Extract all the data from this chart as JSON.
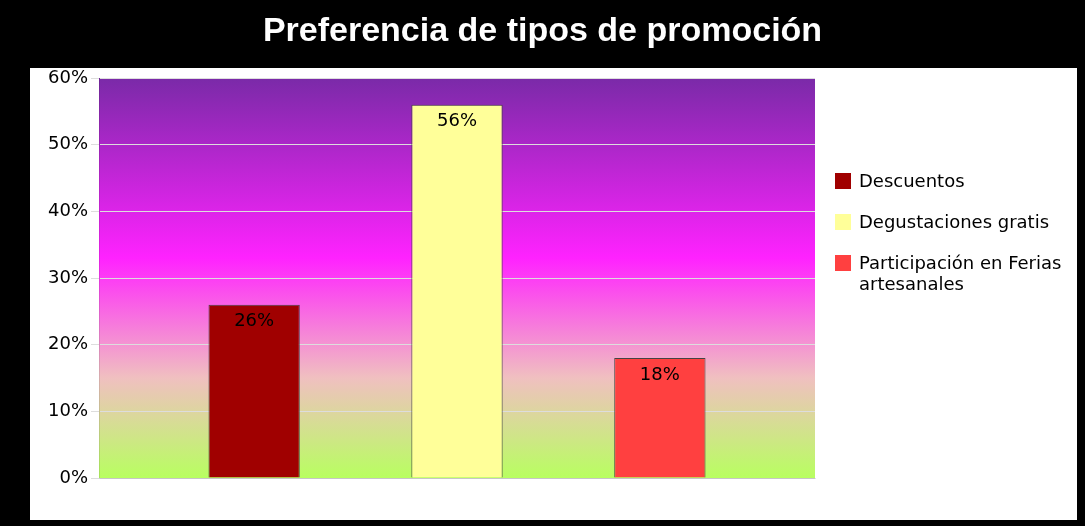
{
  "chart_data": {
    "type": "bar",
    "title": "Preferencia de tipos de promoción",
    "categories": [
      null
    ],
    "series": [
      {
        "name": "Descuentos",
        "color": "#a00000",
        "values": [
          26
        ],
        "value_labels": [
          "26%"
        ]
      },
      {
        "name": "Degustaciones gratis",
        "color": "#ffff99",
        "values": [
          56
        ],
        "value_labels": [
          "56%"
        ]
      },
      {
        "name": "Participación en Ferias artesanales",
        "color": "#ff4040",
        "values": [
          18
        ],
        "value_labels": [
          "18%"
        ]
      }
    ],
    "ylim": [
      0,
      60
    ],
    "yticks": [
      {
        "value": 0,
        "label": "0%"
      },
      {
        "value": 10,
        "label": "10%"
      },
      {
        "value": 20,
        "label": "20%"
      },
      {
        "value": 30,
        "label": "30%"
      },
      {
        "value": 40,
        "label": "40%"
      },
      {
        "value": 50,
        "label": "50%"
      },
      {
        "value": 60,
        "label": "60%"
      }
    ],
    "grid": "y",
    "legend": "right"
  }
}
